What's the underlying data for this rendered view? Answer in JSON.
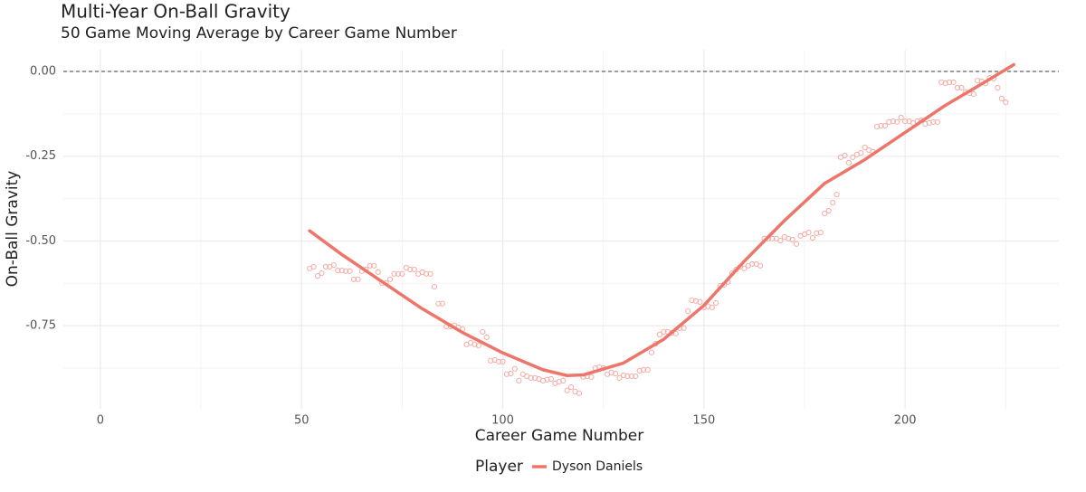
{
  "chart_data": {
    "type": "scatter",
    "title": "Multi-Year On-Ball Gravity",
    "subtitle": "50 Game Moving Average by Career Game Number",
    "x_label": "Career Game Number",
    "y_label": "On-Ball Gravity",
    "legend_title": "Player",
    "legend_position": "bottom",
    "grid": true,
    "reference_line": 0,
    "xlim": [
      -9.2,
      238.2
    ],
    "ylim": [
      -0.995,
      0.064
    ],
    "xticks": [
      0,
      50,
      100,
      150,
      200
    ],
    "yticks": [
      {
        "value": 0,
        "label": "0.00"
      },
      {
        "value": -0.25,
        "label": "-0.25"
      },
      {
        "value": -0.5,
        "label": "-0.50"
      },
      {
        "value": -0.75,
        "label": "-0.75"
      }
    ],
    "x_minor_grid": [
      25,
      75,
      125,
      175,
      225
    ],
    "y_minor_grid": [
      -0.125,
      -0.375,
      -0.625,
      -0.875
    ],
    "points": {
      "color": "#f5aca5",
      "x": [
        52,
        53,
        54,
        55,
        56,
        57,
        58,
        59,
        60,
        61,
        62,
        63,
        64,
        65,
        66,
        67,
        68,
        69,
        70,
        71,
        72,
        73,
        74,
        75,
        76,
        77,
        78,
        79,
        80,
        81,
        82,
        83,
        84,
        85,
        86,
        87,
        88,
        89,
        90,
        91,
        92,
        93,
        94,
        95,
        96,
        97,
        98,
        99,
        100,
        101,
        102,
        103,
        104,
        105,
        106,
        107,
        108,
        109,
        110,
        111,
        112,
        113,
        114,
        115,
        116,
        117,
        118,
        119,
        120,
        121,
        122,
        123,
        124,
        125,
        126,
        127,
        128,
        129,
        130,
        131,
        132,
        133,
        134,
        135,
        136,
        137,
        138,
        139,
        140,
        141,
        142,
        143,
        144,
        145,
        146,
        147,
        148,
        149,
        150,
        151,
        152,
        153,
        154,
        155,
        156,
        157,
        158,
        159,
        160,
        161,
        162,
        163,
        164,
        165,
        166,
        167,
        168,
        169,
        170,
        171,
        172,
        173,
        174,
        175,
        176,
        177,
        178,
        179,
        180,
        181,
        182,
        183,
        184,
        185,
        186,
        187,
        188,
        189,
        190,
        191,
        192,
        193,
        194,
        195,
        196,
        197,
        198,
        199,
        200,
        201,
        202,
        203,
        204,
        205,
        206,
        207,
        208,
        209,
        210,
        211,
        212,
        213,
        214,
        215,
        216,
        217,
        218,
        219,
        220,
        221,
        222,
        223,
        224,
        225
      ],
      "values": [
        -0.581,
        -0.576,
        -0.603,
        -0.595,
        -0.576,
        -0.576,
        -0.571,
        -0.587,
        -0.587,
        -0.589,
        -0.589,
        -0.613,
        -0.613,
        -0.589,
        -0.584,
        -0.573,
        -0.573,
        -0.592,
        -0.624,
        -0.624,
        -0.613,
        -0.597,
        -0.597,
        -0.597,
        -0.579,
        -0.584,
        -0.584,
        -0.597,
        -0.592,
        -0.597,
        -0.597,
        -0.635,
        -0.685,
        -0.685,
        -0.752,
        -0.752,
        -0.749,
        -0.755,
        -0.76,
        -0.805,
        -0.8,
        -0.805,
        -0.808,
        -0.768,
        -0.784,
        -0.853,
        -0.851,
        -0.856,
        -0.856,
        -0.893,
        -0.891,
        -0.877,
        -0.912,
        -0.893,
        -0.899,
        -0.904,
        -0.904,
        -0.907,
        -0.912,
        -0.909,
        -0.907,
        -0.92,
        -0.915,
        -0.912,
        -0.941,
        -0.931,
        -0.944,
        -0.949,
        -0.901,
        -0.899,
        -0.901,
        -0.875,
        -0.872,
        -0.875,
        -0.893,
        -0.888,
        -0.891,
        -0.904,
        -0.896,
        -0.899,
        -0.899,
        -0.899,
        -0.883,
        -0.88,
        -0.88,
        -0.829,
        -0.803,
        -0.776,
        -0.768,
        -0.768,
        -0.771,
        -0.773,
        -0.757,
        -0.757,
        -0.707,
        -0.675,
        -0.677,
        -0.68,
        -0.696,
        -0.693,
        -0.696,
        -0.683,
        -0.632,
        -0.629,
        -0.621,
        -0.595,
        -0.584,
        -0.576,
        -0.581,
        -0.573,
        -0.568,
        -0.568,
        -0.573,
        -0.493,
        -0.493,
        -0.493,
        -0.493,
        -0.499,
        -0.488,
        -0.493,
        -0.496,
        -0.509,
        -0.485,
        -0.48,
        -0.475,
        -0.491,
        -0.477,
        -0.475,
        -0.419,
        -0.411,
        -0.387,
        -0.363,
        -0.253,
        -0.248,
        -0.269,
        -0.253,
        -0.245,
        -0.24,
        -0.224,
        -0.232,
        -0.237,
        -0.163,
        -0.16,
        -0.16,
        -0.149,
        -0.147,
        -0.149,
        -0.136,
        -0.147,
        -0.147,
        -0.152,
        -0.147,
        -0.144,
        -0.155,
        -0.152,
        -0.149,
        -0.149,
        -0.032,
        -0.035,
        -0.032,
        -0.032,
        -0.048,
        -0.048,
        -0.061,
        -0.064,
        -0.067,
        -0.027,
        -0.029,
        -0.035,
        -0.019,
        -0.021,
        -0.048,
        -0.08,
        -0.091
      ]
    },
    "series": [
      {
        "name": "Dyson Daniels",
        "color": "#ee756a",
        "x": [
          52,
          60,
          70,
          80,
          90,
          100,
          110,
          116,
          120,
          130,
          140,
          150,
          160,
          170,
          180,
          190,
          200,
          210,
          220,
          227
        ],
        "values": [
          -0.47,
          -0.54,
          -0.62,
          -0.7,
          -0.77,
          -0.83,
          -0.88,
          -0.897,
          -0.895,
          -0.86,
          -0.79,
          -0.69,
          -0.56,
          -0.44,
          -0.33,
          -0.26,
          -0.18,
          -0.1,
          -0.03,
          0.02
        ]
      }
    ]
  }
}
